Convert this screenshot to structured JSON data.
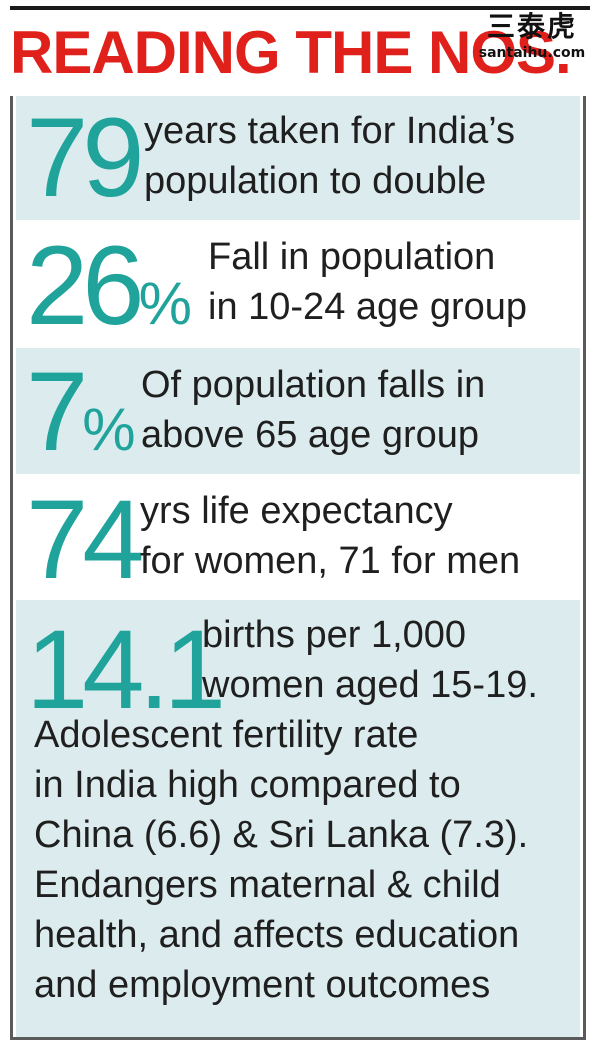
{
  "headline": "READING THE NOS.",
  "watermark": {
    "chinese": "三泰虎",
    "url": "santaihu.com"
  },
  "colors": {
    "accent_teal": "#1fa39a",
    "headline_red": "#e0201b",
    "row_shade": "#dcecee",
    "text_dark": "#1f1f1f"
  },
  "stats": [
    {
      "number": "79",
      "unit": "",
      "line1": "years taken for India’s",
      "line2": "population to double"
    },
    {
      "number": "26",
      "unit": "%",
      "line1": "Fall in population",
      "line2": "in 10-24 age group"
    },
    {
      "number": "7",
      "unit": "%",
      "line1": "Of population falls in",
      "line2": "above 65 age group"
    },
    {
      "number": "74",
      "unit": "",
      "line1": "yrs life expectancy",
      "line2": "for women, 71 for men"
    },
    {
      "number": "14.1",
      "unit": "",
      "line1": "births per 1,000",
      "line2": "women aged 15-19.",
      "extra": "Adolescent fertility rate\nin India high compared to\nChina (6.6) & Sri Lanka (7.3).\nEndangers maternal & child\nhealth, and affects education\nand employment outcomes"
    }
  ]
}
